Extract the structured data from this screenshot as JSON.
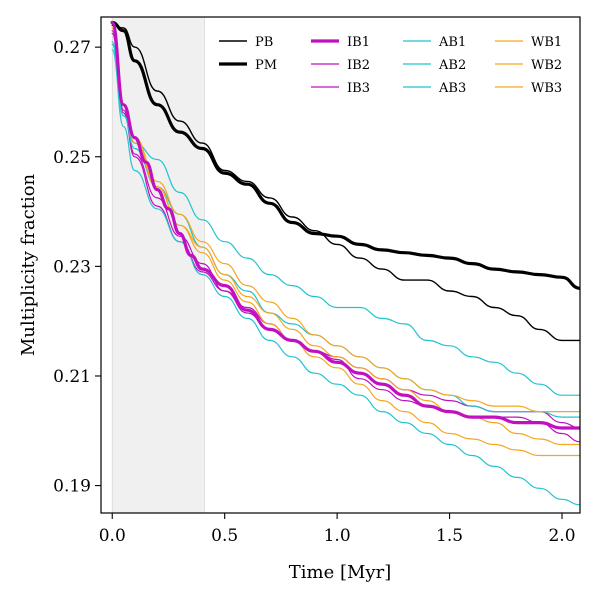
{
  "chart_data": {
    "type": "line",
    "title": "",
    "xlabel": "Time [Myr]",
    "ylabel": "Multiplicity fraction",
    "xlim": [
      -0.05,
      2.08
    ],
    "ylim": [
      0.185,
      0.2755
    ],
    "xticks": [
      0.0,
      0.5,
      1.0,
      1.5,
      2.0
    ],
    "xtick_labels": [
      "0.0",
      "0.5",
      "1.0",
      "1.5",
      "2.0"
    ],
    "yticks": [
      0.19,
      0.21,
      0.23,
      0.25,
      0.27
    ],
    "ytick_labels": [
      "0.19",
      "0.21",
      "0.23",
      "0.25",
      "0.27"
    ],
    "shaded_region": {
      "x": [
        0.0,
        0.41
      ],
      "color": "#f0f0f0"
    },
    "grid": false,
    "legend": {
      "placement": "top-right",
      "columns": 4
    },
    "series": [
      {
        "name": "PB",
        "color": "#000000",
        "width": 1.4,
        "x": [
          0.0,
          0.05,
          0.1,
          0.2,
          0.3,
          0.4,
          0.5,
          0.6,
          0.7,
          0.8,
          0.9,
          1.0,
          1.1,
          1.2,
          1.3,
          1.4,
          1.5,
          1.6,
          1.7,
          1.8,
          1.9,
          2.0,
          2.08
        ],
        "y": [
          0.274,
          0.2735,
          0.27,
          0.262,
          0.2565,
          0.2525,
          0.2475,
          0.2455,
          0.2425,
          0.239,
          0.2365,
          0.234,
          0.2315,
          0.2295,
          0.2275,
          0.2275,
          0.2255,
          0.2245,
          0.2225,
          0.221,
          0.2185,
          0.2165,
          0.2165
        ]
      },
      {
        "name": "PM",
        "color": "#000000",
        "width": 3.2,
        "x": [
          0.0,
          0.05,
          0.1,
          0.2,
          0.3,
          0.4,
          0.5,
          0.6,
          0.7,
          0.8,
          0.9,
          1.0,
          1.1,
          1.2,
          1.3,
          1.4,
          1.5,
          1.6,
          1.7,
          1.8,
          1.9,
          2.0,
          2.08
        ],
        "y": [
          0.2745,
          0.273,
          0.2675,
          0.2595,
          0.2545,
          0.2515,
          0.247,
          0.245,
          0.2415,
          0.238,
          0.236,
          0.2355,
          0.234,
          0.233,
          0.2325,
          0.232,
          0.2315,
          0.2305,
          0.2295,
          0.229,
          0.2285,
          0.228,
          0.226
        ]
      },
      {
        "name": "IB1",
        "color": "#c010c0",
        "width": 3.2,
        "x": [
          0.0,
          0.05,
          0.1,
          0.15,
          0.2,
          0.25,
          0.3,
          0.35,
          0.4,
          0.5,
          0.6,
          0.7,
          0.8,
          0.9,
          1.0,
          1.1,
          1.2,
          1.3,
          1.4,
          1.5,
          1.6,
          1.7,
          1.8,
          1.9,
          2.0,
          2.08
        ],
        "y": [
          0.2745,
          0.2595,
          0.2535,
          0.249,
          0.244,
          0.2405,
          0.236,
          0.232,
          0.2295,
          0.2265,
          0.222,
          0.2185,
          0.2165,
          0.2145,
          0.2125,
          0.2105,
          0.2085,
          0.2065,
          0.2045,
          0.2035,
          0.2025,
          0.2025,
          0.2015,
          0.2015,
          0.2005,
          0.2005
        ]
      },
      {
        "name": "IB2",
        "color": "#c010c0",
        "width": 1.2,
        "x": [
          0.0,
          0.05,
          0.1,
          0.2,
          0.3,
          0.4,
          0.5,
          0.6,
          0.7,
          0.8,
          0.9,
          1.0,
          1.1,
          1.2,
          1.3,
          1.4,
          1.5,
          1.6,
          1.7,
          1.8,
          1.9,
          2.0,
          2.08
        ],
        "y": [
          0.273,
          0.2585,
          0.2505,
          0.2425,
          0.2355,
          0.2305,
          0.2255,
          0.2215,
          0.2185,
          0.2165,
          0.2145,
          0.213,
          0.2095,
          0.2075,
          0.2055,
          0.2045,
          0.2035,
          0.2025,
          0.2025,
          0.2025,
          0.2015,
          0.1995,
          0.198
        ]
      },
      {
        "name": "IB3",
        "color": "#c010c0",
        "width": 1.2,
        "x": [
          0.0,
          0.05,
          0.1,
          0.2,
          0.3,
          0.4,
          0.5,
          0.6,
          0.7,
          0.8,
          0.9,
          1.0,
          1.1,
          1.2,
          1.3,
          1.4,
          1.5,
          1.6,
          1.7,
          1.8,
          1.9,
          2.0,
          2.08
        ],
        "y": [
          0.2725,
          0.258,
          0.25,
          0.241,
          0.2345,
          0.229,
          0.2255,
          0.2225,
          0.2195,
          0.2165,
          0.2145,
          0.2135,
          0.2115,
          0.2095,
          0.2075,
          0.2065,
          0.2055,
          0.2045,
          0.2035,
          0.2035,
          0.2035,
          0.2015,
          0.2005
        ]
      },
      {
        "name": "AB1",
        "color": "#22c3cf",
        "width": 1.2,
        "x": [
          0.0,
          0.05,
          0.1,
          0.2,
          0.3,
          0.4,
          0.5,
          0.6,
          0.7,
          0.8,
          0.9,
          1.0,
          1.1,
          1.2,
          1.3,
          1.4,
          1.5,
          1.6,
          1.7,
          1.8,
          1.9,
          2.0,
          2.08
        ],
        "y": [
          0.271,
          0.2575,
          0.2525,
          0.2495,
          0.2435,
          0.2385,
          0.2345,
          0.2315,
          0.2285,
          0.2265,
          0.2245,
          0.2225,
          0.2225,
          0.2205,
          0.2195,
          0.2165,
          0.2155,
          0.2135,
          0.2125,
          0.2105,
          0.2085,
          0.2065,
          0.2065
        ]
      },
      {
        "name": "AB2",
        "color": "#22c3cf",
        "width": 1.2,
        "x": [
          0.0,
          0.05,
          0.1,
          0.2,
          0.3,
          0.4,
          0.5,
          0.6,
          0.7,
          0.8,
          0.9,
          1.0,
          1.1,
          1.2,
          1.3,
          1.4,
          1.5,
          1.6,
          1.7,
          1.8,
          1.9,
          2.0,
          2.08
        ],
        "y": [
          0.2705,
          0.2575,
          0.2515,
          0.2445,
          0.2395,
          0.2335,
          0.2285,
          0.2255,
          0.2215,
          0.2195,
          0.2175,
          0.2155,
          0.2135,
          0.2115,
          0.2095,
          0.2075,
          0.2065,
          0.2045,
          0.2035,
          0.2035,
          0.2035,
          0.2025,
          0.2025
        ]
      },
      {
        "name": "AB3",
        "color": "#22c3cf",
        "width": 1.2,
        "x": [
          0.0,
          0.05,
          0.1,
          0.2,
          0.3,
          0.4,
          0.5,
          0.6,
          0.7,
          0.8,
          0.9,
          1.0,
          1.1,
          1.2,
          1.3,
          1.4,
          1.5,
          1.6,
          1.7,
          1.8,
          1.9,
          2.0,
          2.08
        ],
        "y": [
          0.2695,
          0.2555,
          0.2475,
          0.2405,
          0.2345,
          0.2285,
          0.2245,
          0.2205,
          0.2165,
          0.2135,
          0.2105,
          0.2085,
          0.2065,
          0.2035,
          0.2015,
          0.1995,
          0.1975,
          0.1955,
          0.1935,
          0.1915,
          0.1895,
          0.1875,
          0.1865
        ]
      },
      {
        "name": "WB1",
        "color": "#f5a623",
        "width": 1.2,
        "x": [
          0.0,
          0.05,
          0.1,
          0.2,
          0.3,
          0.4,
          0.5,
          0.6,
          0.7,
          0.8,
          0.9,
          1.0,
          1.1,
          1.2,
          1.3,
          1.4,
          1.5,
          1.6,
          1.7,
          1.8,
          1.9,
          2.0,
          2.08
        ],
        "y": [
          0.274,
          0.2595,
          0.2535,
          0.2455,
          0.2395,
          0.2345,
          0.2305,
          0.2265,
          0.2235,
          0.2205,
          0.2175,
          0.2155,
          0.2135,
          0.2115,
          0.2095,
          0.2075,
          0.2065,
          0.2055,
          0.2045,
          0.2045,
          0.2035,
          0.2035,
          0.2035
        ]
      },
      {
        "name": "WB2",
        "color": "#f5a623",
        "width": 1.2,
        "x": [
          0.0,
          0.05,
          0.1,
          0.2,
          0.3,
          0.4,
          0.5,
          0.6,
          0.7,
          0.8,
          0.9,
          1.0,
          1.1,
          1.2,
          1.3,
          1.4,
          1.5,
          1.6,
          1.7,
          1.8,
          1.9,
          2.0,
          2.08
        ],
        "y": [
          0.2735,
          0.2595,
          0.2525,
          0.2445,
          0.2375,
          0.2335,
          0.2285,
          0.2245,
          0.2215,
          0.2185,
          0.2155,
          0.2135,
          0.2115,
          0.2095,
          0.2075,
          0.2055,
          0.2035,
          0.2025,
          0.2015,
          0.1995,
          0.1985,
          0.1975,
          0.1975
        ]
      },
      {
        "name": "WB3",
        "color": "#f5a623",
        "width": 1.2,
        "x": [
          0.0,
          0.05,
          0.1,
          0.2,
          0.3,
          0.4,
          0.5,
          0.6,
          0.7,
          0.8,
          0.9,
          1.0,
          1.1,
          1.2,
          1.3,
          1.4,
          1.5,
          1.6,
          1.7,
          1.8,
          1.9,
          2.0,
          2.08
        ],
        "y": [
          0.2745,
          0.2595,
          0.2535,
          0.2445,
          0.2375,
          0.2325,
          0.2275,
          0.2235,
          0.2195,
          0.2165,
          0.2135,
          0.2115,
          0.2085,
          0.2055,
          0.2035,
          0.2015,
          0.1995,
          0.1985,
          0.1975,
          0.1965,
          0.1955,
          0.1955,
          0.1955
        ]
      }
    ]
  }
}
